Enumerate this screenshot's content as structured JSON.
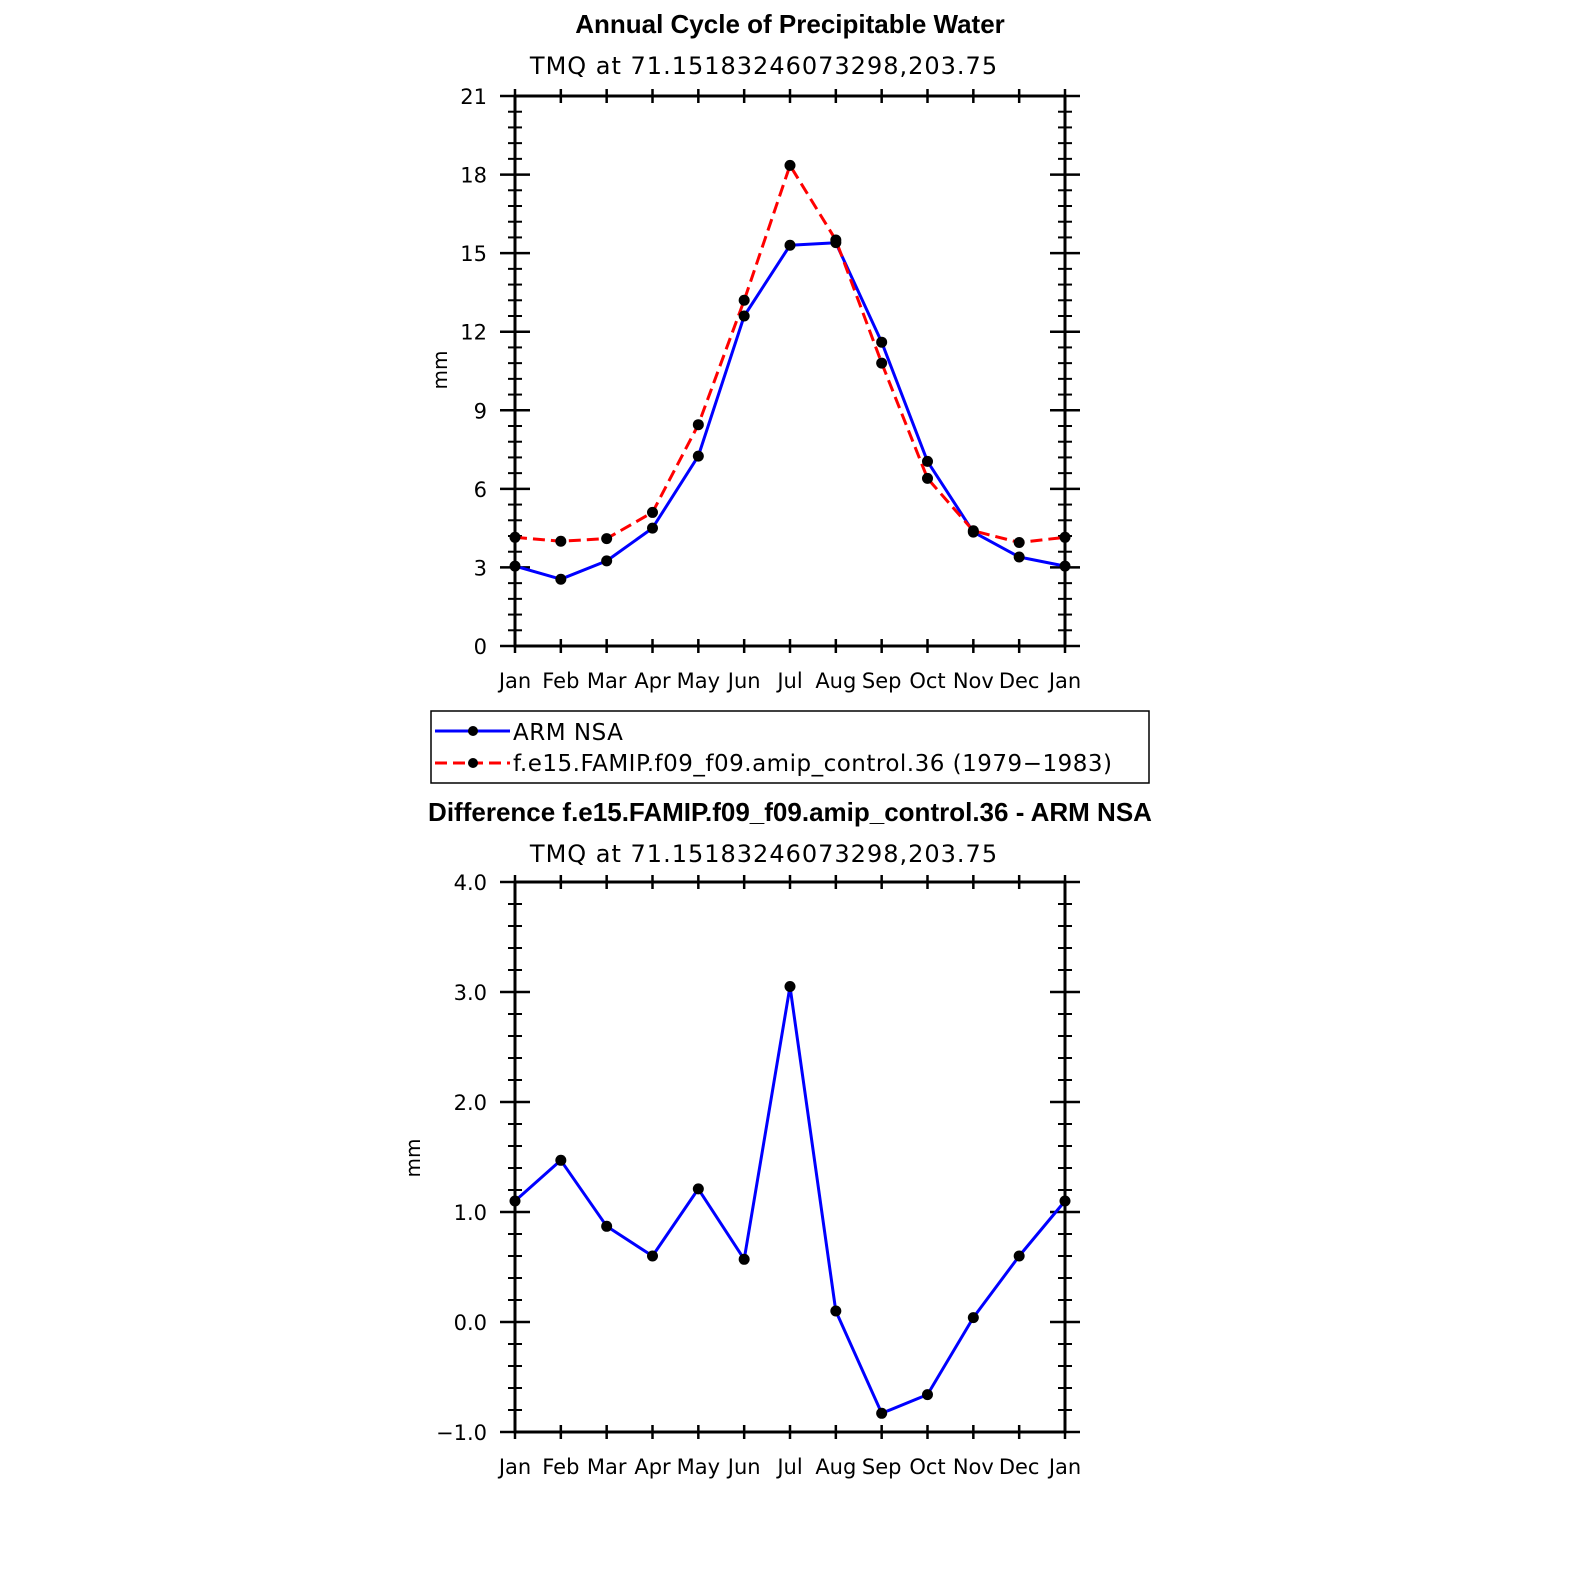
{
  "chart_data": [
    {
      "type": "line",
      "title": "Annual Cycle of Precipitable Water",
      "subtitle": "TMQ  at  71.15183246073298,203.75",
      "ylabel": "mm",
      "xlabel": "",
      "categories": [
        "Jan",
        "Feb",
        "Mar",
        "Apr",
        "May",
        "Jun",
        "Jul",
        "Aug",
        "Sep",
        "Oct",
        "Nov",
        "Dec",
        "Jan"
      ],
      "ylim": [
        0,
        21
      ],
      "yticks": [
        0,
        3,
        6,
        9,
        12,
        15,
        18,
        21
      ],
      "ytick_labels": [
        "0",
        "3",
        "6",
        "9",
        "12",
        "15",
        "18",
        "21"
      ],
      "grid": false,
      "legend_placement": "bottom",
      "series": [
        {
          "name": "ARM  NSA",
          "color": "#0000ff",
          "dash": "solid",
          "values": [
            3.05,
            2.55,
            3.25,
            4.5,
            7.25,
            12.6,
            15.3,
            15.4,
            11.6,
            7.05,
            4.35,
            3.4,
            3.05
          ]
        },
        {
          "name": "f.e15.FAMIP.f09_f09.amip_control.36  (1979−1983)",
          "color": "#ff0000",
          "dash": "dashed",
          "values": [
            4.15,
            4.0,
            4.1,
            5.1,
            8.45,
            13.2,
            18.35,
            15.5,
            10.8,
            6.4,
            4.4,
            3.95,
            4.15
          ]
        }
      ]
    },
    {
      "type": "line",
      "title": "Difference f.e15.FAMIP.f09_f09.amip_control.36 - ARM NSA",
      "subtitle": "TMQ  at  71.15183246073298,203.75",
      "ylabel": "mm",
      "xlabel": "",
      "categories": [
        "Jan",
        "Feb",
        "Mar",
        "Apr",
        "May",
        "Jun",
        "Jul",
        "Aug",
        "Sep",
        "Oct",
        "Nov",
        "Dec",
        "Jan"
      ],
      "ylim": [
        -1.0,
        4.0
      ],
      "yticks": [
        -1.0,
        0.0,
        1.0,
        2.0,
        3.0,
        4.0
      ],
      "ytick_labels": [
        "−1.0",
        "0.0",
        "1.0",
        "2.0",
        "3.0",
        "4.0"
      ],
      "grid": false,
      "series": [
        {
          "color": "#0000ff",
          "dash": "solid",
          "values": [
            1.1,
            1.47,
            0.87,
            0.6,
            1.21,
            0.57,
            3.05,
            0.1,
            -0.83,
            -0.66,
            0.04,
            0.6,
            1.1
          ]
        }
      ]
    }
  ]
}
